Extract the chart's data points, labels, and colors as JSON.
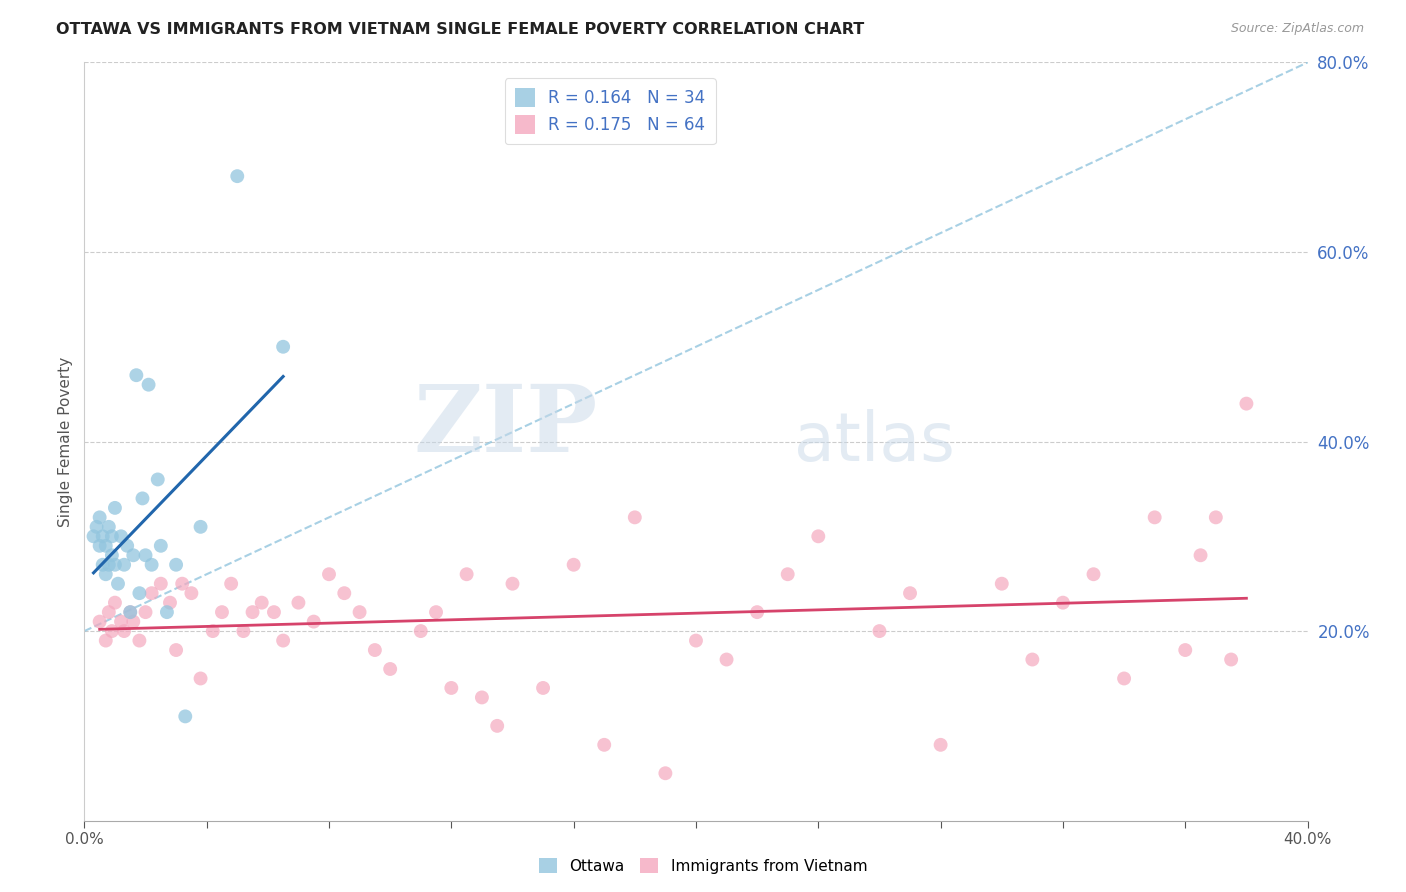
{
  "title": "OTTAWA VS IMMIGRANTS FROM VIETNAM SINGLE FEMALE POVERTY CORRELATION CHART",
  "source": "Source: ZipAtlas.com",
  "ylabel": "Single Female Poverty",
  "xlim": [
    0,
    0.4
  ],
  "ylim": [
    0,
    0.8
  ],
  "yticks_right": [
    0.2,
    0.4,
    0.6,
    0.8
  ],
  "ytick_labels_right": [
    "20.0%",
    "40.0%",
    "60.0%",
    "80.0%"
  ],
  "ottawa_R": "0.164",
  "ottawa_N": "34",
  "vietnam_R": "0.175",
  "vietnam_N": "64",
  "ottawa_color": "#92c5de",
  "vietnam_color": "#f4a8be",
  "trend_ottawa_color": "#2166ac",
  "trend_vietnam_color": "#d6436b",
  "dashed_line_color": "#92c5de",
  "watermark_zip": "ZIP",
  "watermark_atlas": "atlas",
  "ottawa_x": [
    0.003,
    0.004,
    0.005,
    0.005,
    0.006,
    0.006,
    0.007,
    0.007,
    0.008,
    0.008,
    0.009,
    0.009,
    0.01,
    0.01,
    0.011,
    0.012,
    0.013,
    0.014,
    0.015,
    0.016,
    0.017,
    0.018,
    0.019,
    0.02,
    0.021,
    0.022,
    0.024,
    0.025,
    0.027,
    0.03,
    0.033,
    0.038,
    0.05,
    0.065
  ],
  "ottawa_y": [
    0.3,
    0.31,
    0.29,
    0.32,
    0.27,
    0.3,
    0.26,
    0.29,
    0.27,
    0.31,
    0.28,
    0.3,
    0.27,
    0.33,
    0.25,
    0.3,
    0.27,
    0.29,
    0.22,
    0.28,
    0.47,
    0.24,
    0.34,
    0.28,
    0.46,
    0.27,
    0.36,
    0.29,
    0.22,
    0.27,
    0.11,
    0.31,
    0.68,
    0.5
  ],
  "vietnam_x": [
    0.005,
    0.007,
    0.008,
    0.009,
    0.01,
    0.012,
    0.013,
    0.015,
    0.016,
    0.018,
    0.02,
    0.022,
    0.025,
    0.028,
    0.03,
    0.032,
    0.035,
    0.038,
    0.042,
    0.045,
    0.048,
    0.052,
    0.055,
    0.058,
    0.062,
    0.065,
    0.07,
    0.075,
    0.08,
    0.085,
    0.09,
    0.095,
    0.1,
    0.11,
    0.115,
    0.12,
    0.125,
    0.13,
    0.135,
    0.14,
    0.15,
    0.16,
    0.17,
    0.18,
    0.19,
    0.2,
    0.21,
    0.22,
    0.23,
    0.24,
    0.26,
    0.27,
    0.28,
    0.3,
    0.31,
    0.32,
    0.33,
    0.34,
    0.35,
    0.36,
    0.365,
    0.37,
    0.375,
    0.38
  ],
  "vietnam_y": [
    0.21,
    0.19,
    0.22,
    0.2,
    0.23,
    0.21,
    0.2,
    0.22,
    0.21,
    0.19,
    0.22,
    0.24,
    0.25,
    0.23,
    0.18,
    0.25,
    0.24,
    0.15,
    0.2,
    0.22,
    0.25,
    0.2,
    0.22,
    0.23,
    0.22,
    0.19,
    0.23,
    0.21,
    0.26,
    0.24,
    0.22,
    0.18,
    0.16,
    0.2,
    0.22,
    0.14,
    0.26,
    0.13,
    0.1,
    0.25,
    0.14,
    0.27,
    0.08,
    0.32,
    0.05,
    0.19,
    0.17,
    0.22,
    0.26,
    0.3,
    0.2,
    0.24,
    0.08,
    0.25,
    0.17,
    0.23,
    0.26,
    0.15,
    0.32,
    0.18,
    0.28,
    0.32,
    0.17,
    0.44
  ]
}
